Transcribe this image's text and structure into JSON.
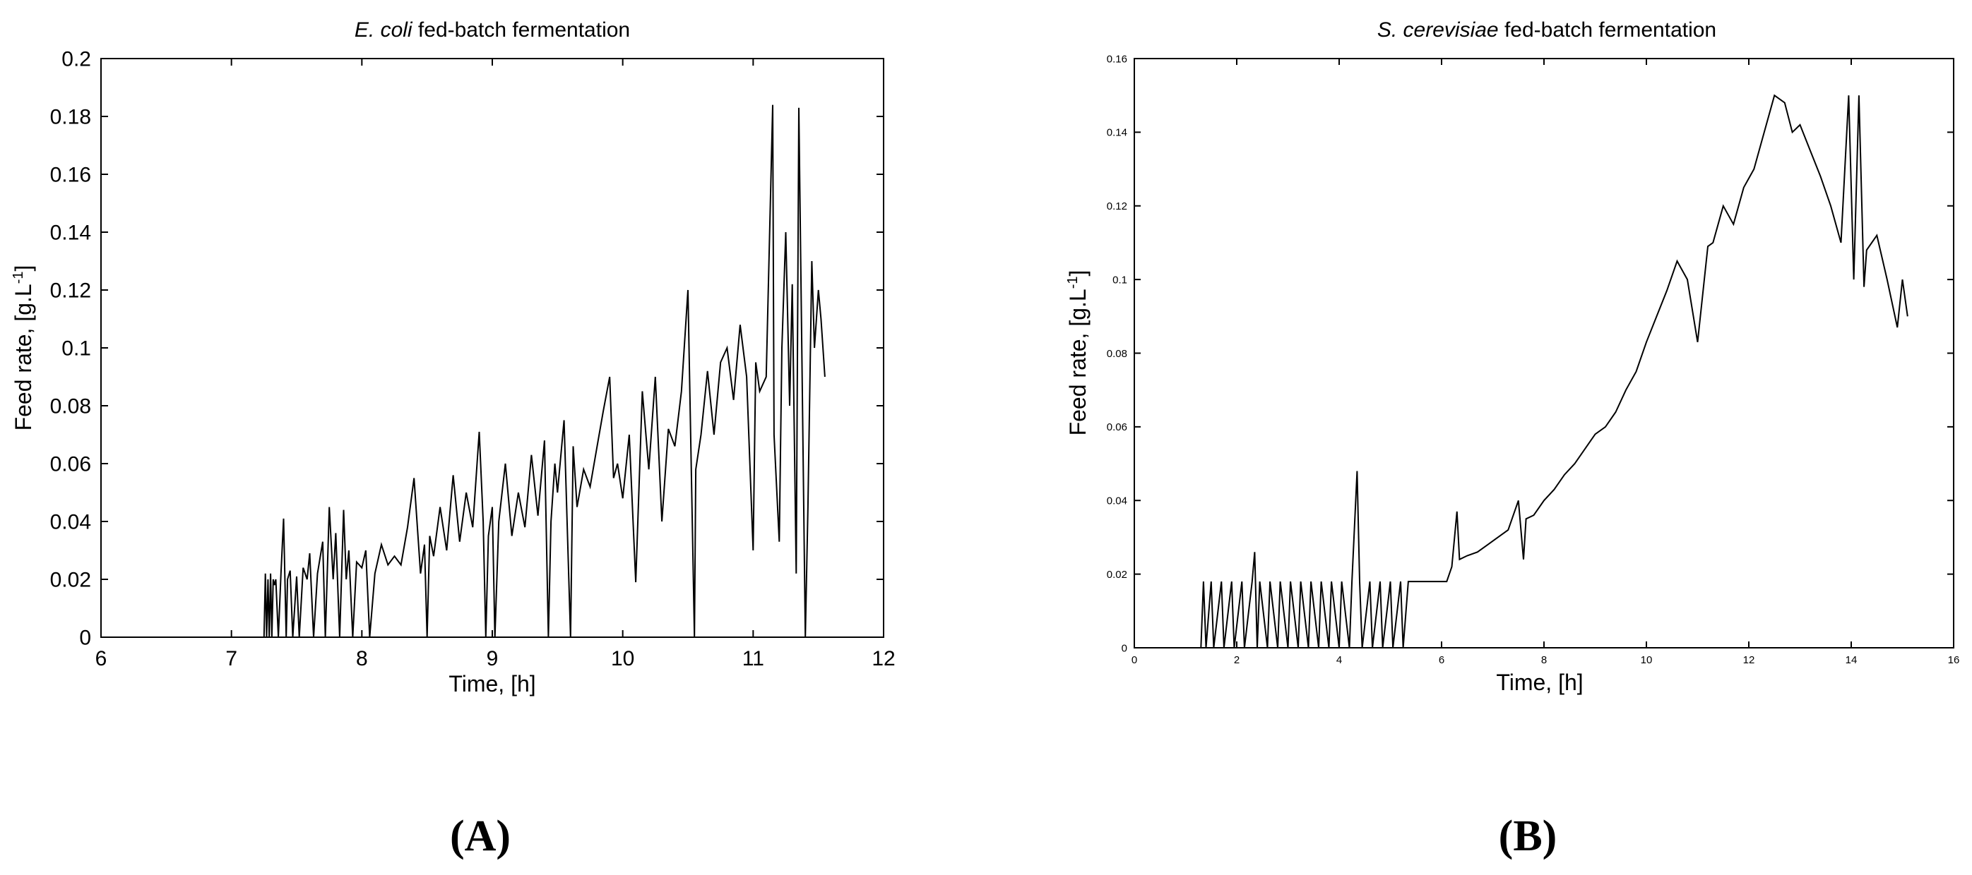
{
  "chart_data": [
    {
      "type": "line",
      "panel_label": "(A)",
      "title_italic": "E. coli",
      "title_rest": " fed-batch fermentation",
      "xlabel": "Time, [h]",
      "ylabel_main": "Feed rate, [g.L",
      "ylabel_sup": "-1",
      "ylabel_close": "]",
      "xlim": [
        6,
        12
      ],
      "ylim": [
        0,
        0.2
      ],
      "xticks": [
        6,
        7,
        8,
        9,
        10,
        11,
        12
      ],
      "xtick_labels": [
        "6",
        "7",
        "8",
        "9",
        "10",
        "11",
        "12"
      ],
      "yticks": [
        0,
        0.02,
        0.04,
        0.06,
        0.08,
        0.1,
        0.12,
        0.14,
        0.16,
        0.18,
        0.2
      ],
      "ytick_labels": [
        "0",
        "0.02",
        "0.04",
        "0.06",
        "0.08",
        "0.1",
        "0.12",
        "0.14",
        "0.16",
        "0.18",
        "0.2"
      ],
      "grid": false,
      "series": [
        {
          "x": [
            7.25,
            7.26,
            7.27,
            7.28,
            7.29,
            7.3,
            7.31,
            7.32,
            7.33,
            7.34,
            7.36,
            7.38,
            7.4,
            7.42,
            7.43,
            7.45,
            7.47,
            7.5,
            7.52,
            7.55,
            7.58,
            7.6,
            7.63,
            7.66,
            7.7,
            7.72,
            7.75,
            7.78,
            7.8,
            7.83,
            7.86,
            7.88,
            7.9,
            7.93,
            7.96,
            8.0,
            8.03,
            8.06,
            8.1,
            8.15,
            8.2,
            8.25,
            8.3,
            8.35,
            8.4,
            8.45,
            8.48,
            8.5,
            8.52,
            8.55,
            8.6,
            8.65,
            8.7,
            8.75,
            8.8,
            8.85,
            8.9,
            8.93,
            8.95,
            8.97,
            9.0,
            9.02,
            9.05,
            9.1,
            9.15,
            9.2,
            9.25,
            9.3,
            9.35,
            9.4,
            9.43,
            9.45,
            9.48,
            9.5,
            9.55,
            9.6,
            9.62,
            9.65,
            9.7,
            9.75,
            9.8,
            9.85,
            9.9,
            9.93,
            9.96,
            10.0,
            10.05,
            10.1,
            10.15,
            10.2,
            10.25,
            10.3,
            10.35,
            10.4,
            10.45,
            10.5,
            10.55,
            10.56,
            10.6,
            10.65,
            10.7,
            10.75,
            10.8,
            10.85,
            10.9,
            10.95,
            11.0,
            11.02,
            11.05,
            11.1,
            11.15,
            11.16,
            11.2,
            11.22,
            11.25,
            11.28,
            11.3,
            11.33,
            11.35,
            11.37,
            11.4,
            11.42,
            11.45,
            11.47,
            11.5,
            11.52,
            11.55
          ],
          "y": [
            0.0,
            0.022,
            0.0,
            0.02,
            0.0,
            0.022,
            0.0,
            0.02,
            0.018,
            0.02,
            0.0,
            0.022,
            0.041,
            0.0,
            0.02,
            0.023,
            0.0,
            0.021,
            0.0,
            0.024,
            0.02,
            0.029,
            0.0,
            0.022,
            0.033,
            0.0,
            0.045,
            0.02,
            0.036,
            0.0,
            0.044,
            0.02,
            0.03,
            0.0,
            0.026,
            0.024,
            0.03,
            0.0,
            0.022,
            0.032,
            0.025,
            0.028,
            0.025,
            0.038,
            0.055,
            0.022,
            0.032,
            0.0,
            0.035,
            0.028,
            0.045,
            0.03,
            0.056,
            0.033,
            0.05,
            0.038,
            0.071,
            0.04,
            0.0,
            0.035,
            0.045,
            0.0,
            0.04,
            0.06,
            0.035,
            0.05,
            0.038,
            0.063,
            0.042,
            0.068,
            0.0,
            0.04,
            0.06,
            0.05,
            0.075,
            0.0,
            0.066,
            0.045,
            0.058,
            0.052,
            0.065,
            0.078,
            0.09,
            0.055,
            0.06,
            0.048,
            0.07,
            0.019,
            0.085,
            0.058,
            0.09,
            0.04,
            0.072,
            0.066,
            0.085,
            0.12,
            0.0,
            0.058,
            0.07,
            0.092,
            0.07,
            0.095,
            0.1,
            0.082,
            0.108,
            0.09,
            0.03,
            0.095,
            0.085,
            0.09,
            0.184,
            0.07,
            0.033,
            0.1,
            0.14,
            0.08,
            0.122,
            0.022,
            0.183,
            0.11,
            0.0,
            0.045,
            0.13,
            0.1,
            0.12,
            0.11,
            0.09
          ]
        }
      ]
    },
    {
      "type": "line",
      "panel_label": "(B)",
      "title_italic": "S. cerevisiae",
      "title_rest": " fed-batch fermentation",
      "xlabel": "Time, [h]",
      "ylabel_main": "Feed rate, [g.L",
      "ylabel_sup": "-1",
      "ylabel_close": "]",
      "xlim": [
        0,
        16
      ],
      "ylim": [
        0,
        0.16
      ],
      "xticks": [
        0,
        2,
        4,
        6,
        8,
        10,
        12,
        14,
        16
      ],
      "xtick_labels": [
        "0",
        "2",
        "4",
        "6",
        "8",
        "10",
        "12",
        "14",
        "16"
      ],
      "yticks": [
        0,
        0.02,
        0.04,
        0.06,
        0.08,
        0.1,
        0.12,
        0.14,
        0.16
      ],
      "ytick_labels": [
        "0",
        "0.02",
        "0.04",
        "0.06",
        "0.08",
        "0.1",
        "0.12",
        "0.14",
        "0.16"
      ],
      "grid": false,
      "series": [
        {
          "x": [
            1.3,
            1.35,
            1.4,
            1.5,
            1.55,
            1.7,
            1.75,
            1.9,
            1.95,
            2.1,
            2.15,
            2.3,
            2.35,
            2.4,
            2.45,
            2.6,
            2.65,
            2.8,
            2.85,
            3.0,
            3.05,
            3.2,
            3.25,
            3.4,
            3.45,
            3.6,
            3.65,
            3.8,
            3.85,
            4.0,
            4.05,
            4.2,
            4.25,
            4.35,
            4.4,
            4.45,
            4.6,
            4.65,
            4.8,
            4.85,
            5.0,
            5.05,
            5.2,
            5.25,
            5.35,
            5.4,
            5.6,
            5.8,
            6.0,
            6.1,
            6.2,
            6.3,
            6.35,
            6.5,
            6.7,
            6.9,
            7.1,
            7.3,
            7.5,
            7.6,
            7.65,
            7.8,
            8.0,
            8.2,
            8.4,
            8.6,
            8.8,
            9.0,
            9.2,
            9.4,
            9.6,
            9.8,
            10.0,
            10.2,
            10.4,
            10.6,
            10.8,
            11.0,
            11.2,
            11.3,
            11.5,
            11.7,
            11.9,
            12.1,
            12.3,
            12.5,
            12.7,
            12.85,
            13.0,
            13.2,
            13.4,
            13.6,
            13.8,
            13.95,
            14.05,
            14.15,
            14.25,
            14.3,
            14.5,
            14.7,
            14.9,
            15.0,
            15.1
          ],
          "y": [
            0.0,
            0.018,
            0.0,
            0.018,
            0.0,
            0.018,
            0.0,
            0.018,
            0.0,
            0.018,
            0.0,
            0.018,
            0.026,
            0.0,
            0.018,
            0.0,
            0.018,
            0.0,
            0.018,
            0.0,
            0.018,
            0.0,
            0.018,
            0.0,
            0.018,
            0.0,
            0.018,
            0.0,
            0.018,
            0.0,
            0.018,
            0.0,
            0.018,
            0.048,
            0.018,
            0.0,
            0.018,
            0.0,
            0.018,
            0.0,
            0.018,
            0.0,
            0.018,
            0.0,
            0.018,
            0.018,
            0.018,
            0.018,
            0.018,
            0.018,
            0.022,
            0.037,
            0.024,
            0.025,
            0.026,
            0.028,
            0.03,
            0.032,
            0.04,
            0.024,
            0.035,
            0.036,
            0.04,
            0.043,
            0.047,
            0.05,
            0.054,
            0.058,
            0.06,
            0.064,
            0.07,
            0.075,
            0.083,
            0.09,
            0.097,
            0.105,
            0.1,
            0.083,
            0.109,
            0.11,
            0.12,
            0.115,
            0.125,
            0.13,
            0.14,
            0.15,
            0.148,
            0.14,
            0.142,
            0.135,
            0.128,
            0.12,
            0.11,
            0.15,
            0.1,
            0.15,
            0.098,
            0.108,
            0.112,
            0.1,
            0.087,
            0.1,
            0.09
          ]
        }
      ]
    }
  ]
}
